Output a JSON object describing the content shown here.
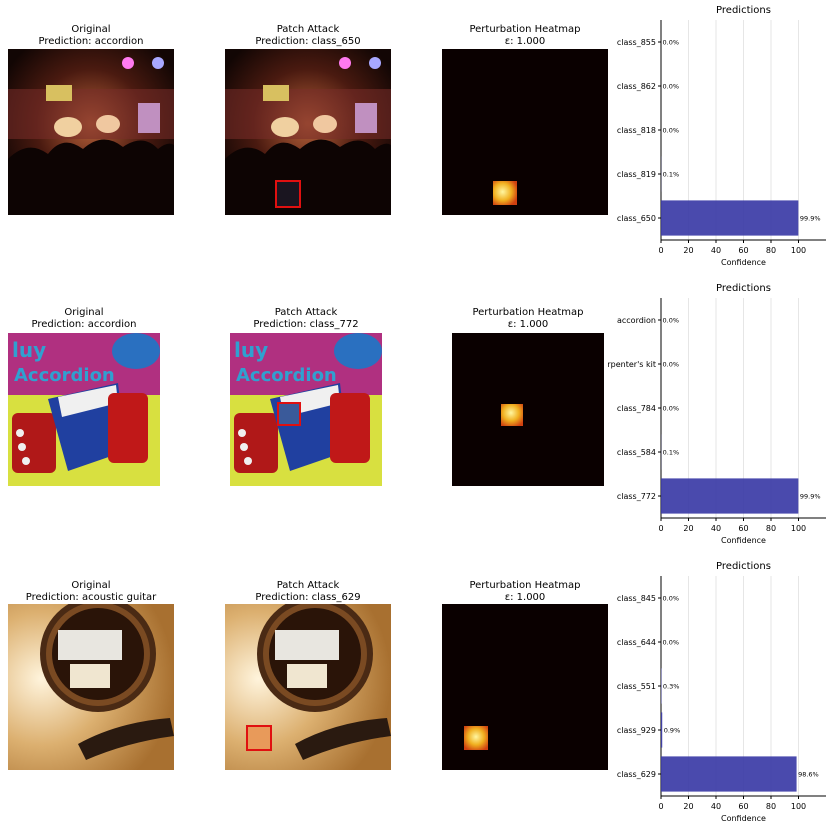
{
  "rows": [
    {
      "original": {
        "title": "Original",
        "prediction": "Prediction: accordion"
      },
      "attack": {
        "title": "Patch Attack",
        "prediction": "Prediction: class_650"
      },
      "heatmap": {
        "title": "Perturbation Heatmap",
        "eps": "ε: 1.000"
      },
      "scene": "concert",
      "colors": {
        "patch_border": "#e01010",
        "bar": "#3b3ba6"
      }
    },
    {
      "original": {
        "title": "Original",
        "prediction": "Prediction: accordion"
      },
      "attack": {
        "title": "Patch Attack",
        "prediction": "Prediction: class_772"
      },
      "heatmap": {
        "title": "Perturbation Heatmap",
        "eps": "ε: 1.000"
      },
      "scene": "accordion-book"
    },
    {
      "original": {
        "title": "Original",
        "prediction": "Prediction: acoustic guitar"
      },
      "attack": {
        "title": "Patch Attack",
        "prediction": "Prediction: class_629"
      },
      "heatmap": {
        "title": "Perturbation Heatmap",
        "eps": "ε: 1.000"
      },
      "scene": "guitar"
    }
  ],
  "chart_data": [
    {
      "type": "bar",
      "orientation": "horizontal",
      "title": "Predictions",
      "xlabel": "Confidence",
      "ylabel": "",
      "xlim": [
        0,
        120
      ],
      "xticks": [
        "0",
        "20",
        "40",
        "60",
        "80",
        "100"
      ],
      "grid": "vertical",
      "categories": [
        "class_855",
        "class_862",
        "class_818",
        "class_819",
        "class_650"
      ],
      "values": [
        0.0,
        0.0,
        0.0,
        0.1,
        99.9
      ],
      "value_labels": [
        "0.0%",
        "0.0%",
        "0.0%",
        "0.1%",
        "99.9%"
      ],
      "color": "#3b3ba6"
    },
    {
      "type": "bar",
      "orientation": "horizontal",
      "title": "Predictions",
      "xlabel": "Confidence",
      "ylabel": "",
      "xlim": [
        0,
        120
      ],
      "xticks": [
        "0",
        "20",
        "40",
        "60",
        "80",
        "100"
      ],
      "grid": "vertical",
      "categories": [
        "accordion",
        "carpenter's kit",
        "class_784",
        "class_584",
        "class_772"
      ],
      "values": [
        0.0,
        0.0,
        0.0,
        0.1,
        99.9
      ],
      "value_labels": [
        "0.0%",
        "0.0%",
        "0.0%",
        "0.1%",
        "99.9%"
      ],
      "color": "#3b3ba6"
    },
    {
      "type": "bar",
      "orientation": "horizontal",
      "title": "Predictions",
      "xlabel": "Confidence",
      "ylabel": "",
      "xlim": [
        0,
        120
      ],
      "xticks": [
        "0",
        "20",
        "40",
        "60",
        "80",
        "100"
      ],
      "grid": "vertical",
      "categories": [
        "class_845",
        "class_644",
        "class_551",
        "class_929",
        "class_629"
      ],
      "values": [
        0.0,
        0.0,
        0.3,
        0.9,
        98.6
      ],
      "value_labels": [
        "0.0%",
        "0.0%",
        "0.3%",
        "0.9%",
        "98.6%"
      ],
      "color": "#3b3ba6"
    }
  ]
}
